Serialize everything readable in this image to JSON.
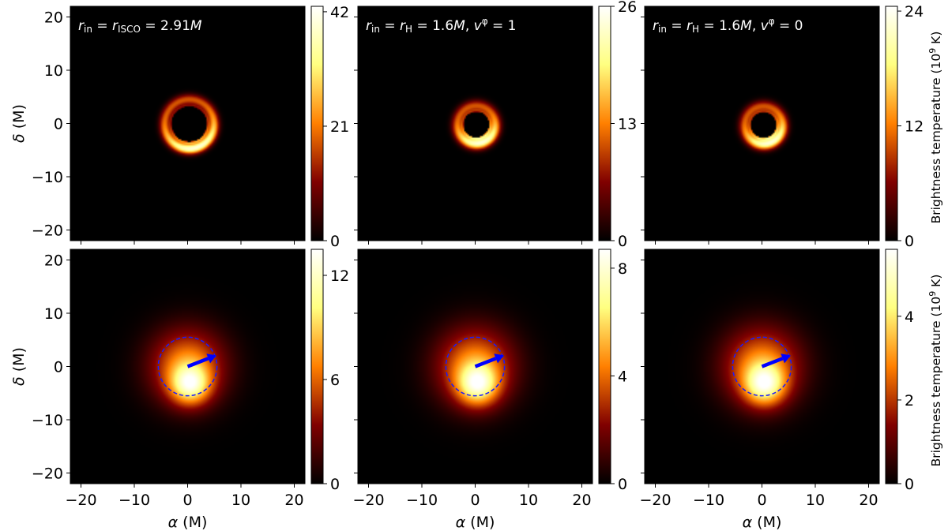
{
  "chart_data": {
    "type": "heatmap",
    "colormap": "afmhot",
    "x_tick_labels": [
      "−20",
      "−10",
      "0",
      "10",
      "20"
    ],
    "y_tick_labels": [
      "20",
      "10",
      "0",
      "−10",
      "−20"
    ],
    "x_ticks": [
      -20,
      -10,
      0,
      10,
      20
    ],
    "y_ticks": [
      20,
      10,
      0,
      -10,
      -20
    ],
    "xlim": [
      -22,
      22
    ],
    "ylim": [
      -22,
      22
    ],
    "xlabel_symbol": "α",
    "xlabel_unit": " (M)",
    "ylabel_symbol": "δ",
    "ylabel_unit": " (M)",
    "colorbar_title_main": "Brightness temperature (10",
    "colorbar_title_exp": "9",
    "colorbar_title_end": " K)",
    "panels": [
      {
        "id": "top-left",
        "annotation": {
          "parts": [
            {
              "t": "r",
              "it": true
            },
            {
              "t": "in",
              "sub": true
            },
            {
              "t": " = "
            },
            {
              "t": "r",
              "it": true
            },
            {
              "t": "ISCO",
              "sub": true
            },
            {
              "t": " = 2.91"
            },
            {
              "t": "M",
              "it": true
            }
          ]
        },
        "colorbar_ticks": [
          0,
          21,
          42
        ],
        "colorbar_tick_labels": [
          "0",
          "21",
          "42"
        ],
        "colorbar_max": 43,
        "image": {
          "kind": "ring",
          "shadow_radius": 3.3,
          "ring_radius": 4.6,
          "ring_width": 1.0,
          "bright_angle_deg": 285,
          "ring_center": [
            0.3,
            -0.1
          ]
        }
      },
      {
        "id": "top-middle",
        "annotation": {
          "parts": [
            {
              "t": "r",
              "it": true
            },
            {
              "t": "in",
              "sub": true
            },
            {
              "t": " = "
            },
            {
              "t": "r",
              "it": true
            },
            {
              "t": "H",
              "sub": true
            },
            {
              "t": " = 1.6"
            },
            {
              "t": "M",
              "it": true
            },
            {
              "t": ", "
            },
            {
              "t": "v",
              "it": true
            },
            {
              "t": "φ",
              "sup": true
            },
            {
              "t": " = 1"
            }
          ]
        },
        "colorbar_ticks": [
          0,
          13,
          26
        ],
        "colorbar_tick_labels": [
          "0",
          "13",
          "26"
        ],
        "colorbar_max": 26,
        "image": {
          "kind": "ring",
          "shadow_radius": 2.4,
          "ring_radius": 3.5,
          "ring_width": 1.1,
          "bright_angle_deg": 285,
          "ring_center": [
            0.2,
            -0.2
          ]
        }
      },
      {
        "id": "top-right",
        "annotation": {
          "parts": [
            {
              "t": "r",
              "it": true
            },
            {
              "t": "in",
              "sub": true
            },
            {
              "t": " = "
            },
            {
              "t": "r",
              "it": true
            },
            {
              "t": "H",
              "sub": true
            },
            {
              "t": " = 1.6"
            },
            {
              "t": "M",
              "it": true
            },
            {
              "t": ", "
            },
            {
              "t": "v",
              "it": true
            },
            {
              "t": "φ",
              "sup": true
            },
            {
              "t": " = 0"
            }
          ]
        },
        "colorbar_ticks": [
          0,
          12,
          24
        ],
        "colorbar_tick_labels": [
          "0",
          "12",
          "24"
        ],
        "colorbar_max": 24.5,
        "image": {
          "kind": "ring",
          "shadow_radius": 2.4,
          "ring_radius": 3.5,
          "ring_width": 1.1,
          "bright_angle_deg": 290,
          "ring_center": [
            0.3,
            -0.3
          ]
        }
      },
      {
        "id": "bottom-left",
        "colorbar_ticks": [
          0,
          6,
          12
        ],
        "colorbar_tick_labels": [
          "0",
          "6",
          "12"
        ],
        "colorbar_max": 13.5,
        "image": {
          "kind": "blob",
          "blob_center": [
            0.5,
            -3.5
          ],
          "blob_sigma": 4.6,
          "spin_circle_center": [
            0,
            0
          ],
          "spin_circle_radius": 5.5,
          "arrow_from": [
            0,
            0
          ],
          "arrow_to": [
            5.4,
            2.1
          ]
        }
      },
      {
        "id": "bottom-middle",
        "colorbar_ticks": [
          0,
          4,
          8
        ],
        "colorbar_tick_labels": [
          "0",
          "4",
          "8"
        ],
        "colorbar_max": 8.7,
        "image": {
          "kind": "blob",
          "blob_center": [
            0.5,
            -3.5
          ],
          "blob_sigma": 4.8,
          "spin_circle_center": [
            0,
            0
          ],
          "spin_circle_radius": 5.5,
          "arrow_from": [
            0,
            0
          ],
          "arrow_to": [
            5.4,
            2.1
          ]
        }
      },
      {
        "id": "bottom-right",
        "colorbar_ticks": [
          0,
          2,
          4
        ],
        "colorbar_tick_labels": [
          "0",
          "2",
          "4"
        ],
        "colorbar_max": 5.6,
        "image": {
          "kind": "blob",
          "blob_center": [
            0.5,
            -3.5
          ],
          "blob_sigma": 4.8,
          "spin_circle_center": [
            0,
            0
          ],
          "spin_circle_radius": 5.5,
          "arrow_from": [
            0,
            0
          ],
          "arrow_to": [
            5.4,
            2.1
          ]
        }
      }
    ]
  },
  "colors": {
    "spin_circle": "#1a1aff",
    "spin_arrow": "#0000ff",
    "annotation_text": "#ffffff"
  }
}
